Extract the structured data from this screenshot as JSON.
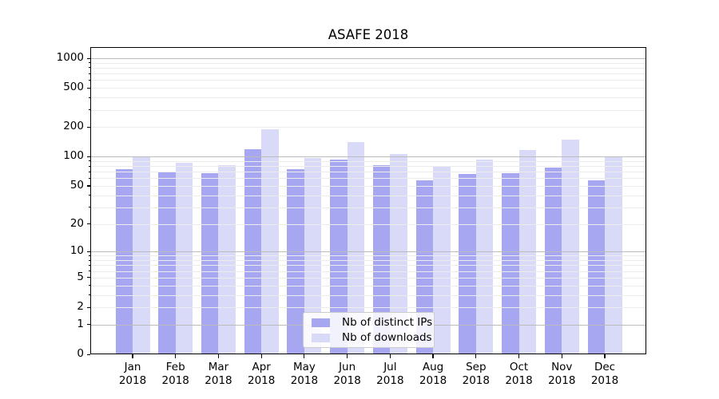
{
  "title": "ASAFE 2018",
  "legend": {
    "items": [
      {
        "label": "Nb of distinct IPs",
        "color": "#a6a6f1"
      },
      {
        "label": "Nb of downloads",
        "color": "#d9d9f8"
      }
    ]
  },
  "chart_data": {
    "type": "bar",
    "title": "ASAFE 2018",
    "categories": [
      "Jan",
      "Feb",
      "Mar",
      "Apr",
      "May",
      "Jun",
      "Jul",
      "Aug",
      "Sep",
      "Oct",
      "Nov",
      "Dec"
    ],
    "year_label": "2018",
    "series": [
      {
        "name": "Nb of distinct IPs",
        "color": "#a6a6f1",
        "values": [
          74,
          70,
          68,
          119,
          74,
          93,
          82,
          57,
          66,
          68,
          77,
          57
        ]
      },
      {
        "name": "Nb of downloads",
        "color": "#d9d9f8",
        "values": [
          100,
          86,
          82,
          190,
          96,
          140,
          106,
          80,
          93,
          117,
          149,
          100
        ]
      }
    ],
    "yscale": "log1p",
    "ytick_labels": [
      "0",
      "1",
      "2",
      "5",
      "10",
      "20",
      "50",
      "100",
      "200",
      "500",
      "1000"
    ],
    "yticks": [
      0,
      1,
      2,
      5,
      10,
      20,
      50,
      100,
      200,
      500,
      1000
    ],
    "ytick_major_gridlines": [
      1,
      10,
      100,
      1000
    ],
    "ylim": [
      0,
      1300
    ],
    "grid": true,
    "legend_position": "lower-center",
    "colors": {
      "major_grid": "#bcbcbc",
      "minor_grid": "#ececec",
      "axis": "#000000",
      "text": "#000000",
      "background": "#ffffff"
    }
  }
}
